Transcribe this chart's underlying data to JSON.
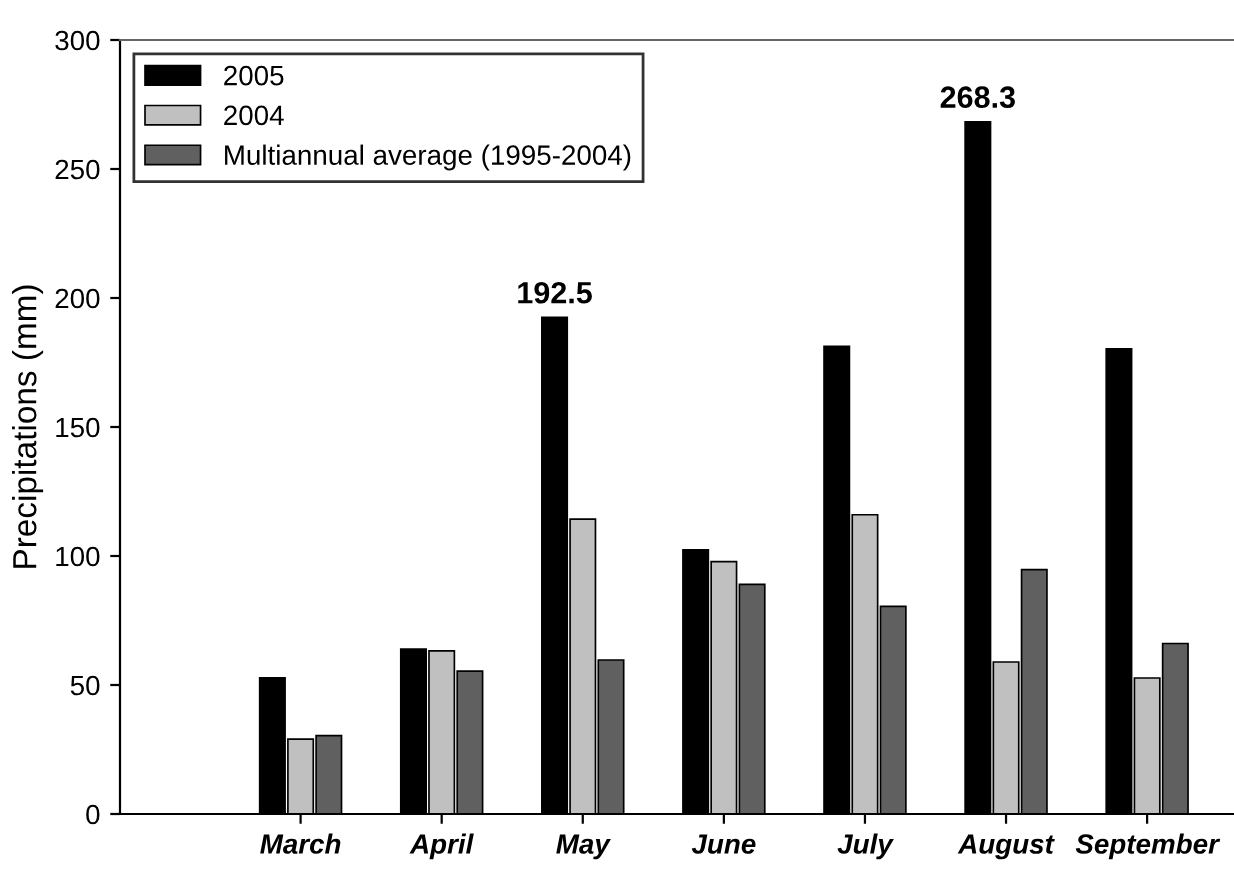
{
  "chart_data": {
    "type": "bar",
    "ylabel": "Precipitations (mm)",
    "categories": [
      "March",
      "April",
      "May",
      "June",
      "July",
      "August",
      "September"
    ],
    "series": [
      {
        "name": "2005",
        "color": "#000000",
        "values": [
          52.8,
          63.9,
          192.5,
          102.4,
          181.3,
          268.3,
          180.3
        ],
        "value_labels": [
          null,
          null,
          "192.5",
          null,
          null,
          "268.3",
          null
        ]
      },
      {
        "name": "2004",
        "color": "#c0c0c0",
        "values": [
          29,
          63.2,
          114.3,
          97.8,
          116,
          58.9,
          52.7
        ]
      },
      {
        "name": "Multiannual average (1995-2004)",
        "color": "#606060",
        "values": [
          30.4,
          55.4,
          59.7,
          89,
          80.5,
          94.7,
          66.1
        ]
      }
    ],
    "ylim": [
      0,
      300
    ],
    "yticks": [
      0,
      50,
      100,
      150,
      200,
      250,
      300
    ],
    "grid": false,
    "legend": "top left"
  }
}
